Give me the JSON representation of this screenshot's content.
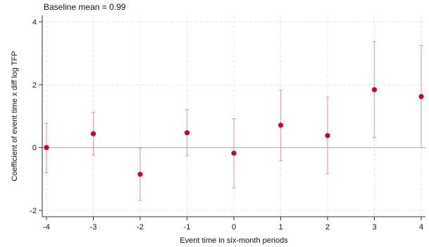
{
  "chart_data": {
    "type": "scatter",
    "title": "Baseline mean = 0.99",
    "xlabel": "Event time in six-month periods",
    "ylabel": "Coefficient of event time x diff log TFP",
    "x_ticks": [
      -4,
      -3,
      -2,
      -1,
      0,
      1,
      2,
      3,
      4
    ],
    "y_ticks": [
      -2,
      0,
      2,
      4
    ],
    "xlim": [
      -4,
      4
    ],
    "ylim": [
      -2.2,
      4.2
    ],
    "grid": true,
    "reference_line_y": 0,
    "series": [
      {
        "x": [
          -4,
          -3,
          -2,
          -1,
          0,
          1,
          2,
          3,
          4
        ],
        "y": [
          0.0,
          0.44,
          -0.85,
          0.47,
          -0.18,
          0.71,
          0.38,
          1.84,
          1.62
        ],
        "ci_low": [
          -0.8,
          -0.23,
          -1.68,
          -0.26,
          -1.28,
          -0.42,
          -0.83,
          0.32,
          0.0
        ],
        "ci_high": [
          0.77,
          1.12,
          -0.02,
          1.21,
          0.92,
          1.83,
          1.6,
          3.37,
          3.25
        ]
      }
    ],
    "colors": {
      "point": "#c2003c",
      "ci": "#e2a2b6",
      "grid": "#e6e6e6",
      "reference": "#aaaaaa",
      "axis": "#333333"
    }
  }
}
